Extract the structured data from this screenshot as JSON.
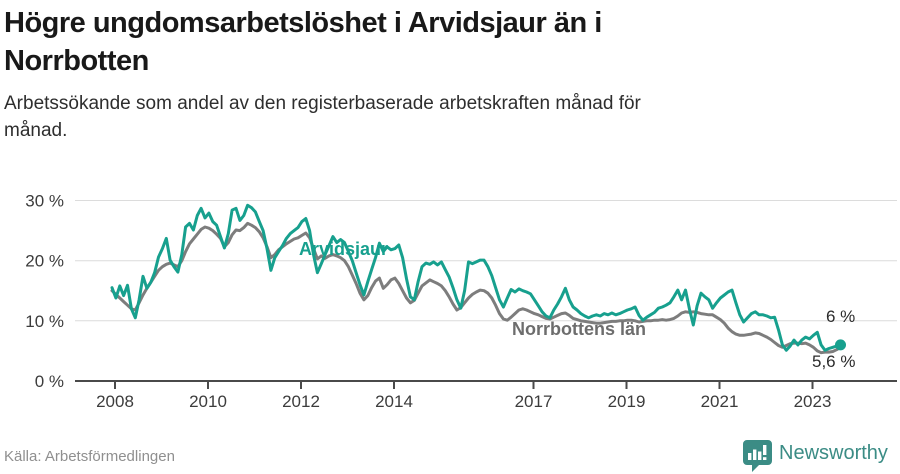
{
  "header": {
    "title_lines": [
      "Högre ungdomsarbetslöshet i Arvidsjaur än i",
      "Norrbotten"
    ],
    "subtitle_lines": [
      "Arbetssökande som andel av den registerbaserade arbetskraften månad för",
      "månad."
    ]
  },
  "colors": {
    "accent_teal": "#17a08e",
    "series_gray": "#7d7d7d",
    "grid": "#dcdcdc",
    "axis": "#4a4a4a",
    "axis_text": "#3c3c3c",
    "brand_teal": "#3b8c85"
  },
  "chart_data": {
    "type": "line",
    "title": "Högre ungdomsarbetslöshet i Arvidsjaur än i Norrbotten",
    "subtitle": "Arbetssökande som andel av den registerbaserade arbetskraften månad för månad.",
    "unit": "%",
    "frequency": "monthly",
    "start": "2008-01",
    "end": "2023-09",
    "grid": "horizontal",
    "legend_position": "inline-labels",
    "ylim": [
      0,
      32
    ],
    "y_axis": {
      "ticks": [
        {
          "value": 0,
          "label": "0 %"
        },
        {
          "value": 10,
          "label": "10 %"
        },
        {
          "value": 20,
          "label": "20 %"
        },
        {
          "value": 30,
          "label": "30 %"
        }
      ]
    },
    "x_axis": {
      "ticks": [
        {
          "year": 2008,
          "label": "2008"
        },
        {
          "year": 2010,
          "label": "2010"
        },
        {
          "year": 2012,
          "label": "2012"
        },
        {
          "year": 2014,
          "label": "2014"
        },
        {
          "year": 2017,
          "label": "2017"
        },
        {
          "year": 2019,
          "label": "2019"
        },
        {
          "year": 2021,
          "label": "2021"
        },
        {
          "year": 2023,
          "label": "2023"
        }
      ]
    },
    "series": [
      {
        "id": "arvidsjaur",
        "name": "Arvidsjaur",
        "color": "#17a08e",
        "end_label": "6 %",
        "end_value": 6.0,
        "values": [
          15.5,
          13.8,
          15.8,
          14.2,
          15.9,
          12.0,
          10.5,
          13.5,
          17.4,
          15.4,
          16.4,
          18.0,
          20.6,
          22.0,
          23.7,
          20.1,
          19.0,
          18.1,
          21.0,
          25.6,
          26.2,
          25.1,
          27.5,
          28.7,
          27.1,
          27.9,
          26.5,
          25.9,
          24.0,
          22.1,
          24.5,
          28.4,
          28.7,
          26.7,
          27.5,
          29.2,
          28.8,
          28.1,
          26.5,
          25.0,
          22.0,
          18.4,
          20.5,
          21.5,
          22.5,
          23.7,
          24.5,
          25.0,
          25.5,
          26.5,
          27.0,
          25.0,
          21.0,
          18.0,
          19.5,
          21.0,
          22.5,
          24.0,
          23.0,
          23.5,
          23.0,
          21.5,
          20.0,
          18.0,
          16.0,
          14.3,
          16.5,
          18.5,
          20.5,
          22.9,
          21.5,
          22.3,
          21.8,
          22.0,
          22.6,
          20.5,
          17.0,
          14.0,
          13.5,
          16.5,
          19.0,
          19.6,
          19.4,
          19.8,
          19.3,
          19.8,
          18.5,
          17.3,
          15.5,
          13.5,
          12.1,
          15.0,
          19.8,
          19.5,
          19.8,
          20.1,
          20.1,
          19.0,
          17.5,
          15.5,
          13.5,
          12.3,
          13.8,
          15.2,
          14.8,
          15.3,
          15.0,
          14.8,
          14.5,
          13.5,
          12.5,
          11.5,
          10.8,
          10.5,
          11.8,
          12.8,
          14.0,
          15.4,
          13.5,
          12.3,
          11.8,
          11.2,
          10.8,
          10.5,
          10.8,
          11.0,
          10.8,
          11.2,
          11.0,
          11.3,
          11.0,
          11.2,
          11.5,
          11.8,
          12.0,
          12.3,
          10.9,
          10.1,
          10.6,
          11.0,
          11.4,
          12.1,
          12.3,
          12.6,
          13.0,
          14.0,
          15.1,
          13.5,
          15.1,
          12.0,
          9.3,
          12.5,
          14.6,
          14.0,
          13.5,
          12.1,
          13.0,
          13.8,
          14.3,
          14.8,
          15.1,
          13.0,
          11.0,
          9.8,
          10.5,
          11.2,
          11.5,
          11.0,
          11.0,
          10.8,
          10.5,
          10.6,
          8.5,
          6.0,
          5.1,
          5.8,
          6.8,
          6.0,
          6.8,
          7.3,
          7.0,
          7.6,
          8.1,
          6.0,
          5.1,
          5.4,
          5.6,
          5.8,
          6.0
        ]
      },
      {
        "id": "norrbottens-lan",
        "name": "Norrbottens län",
        "color": "#7d7d7d",
        "end_label": "5,6 %",
        "end_value": 5.6,
        "values": [
          15.0,
          14.4,
          13.8,
          13.2,
          12.6,
          12.0,
          11.8,
          13.0,
          14.3,
          15.4,
          16.4,
          17.4,
          18.4,
          19.0,
          19.4,
          19.6,
          19.3,
          19.0,
          20.0,
          21.5,
          22.8,
          23.6,
          24.4,
          25.2,
          25.6,
          25.4,
          25.0,
          24.4,
          23.7,
          22.3,
          23.0,
          24.3,
          25.1,
          25.0,
          25.5,
          26.2,
          25.9,
          25.5,
          24.8,
          23.8,
          22.3,
          20.5,
          21.0,
          21.8,
          22.3,
          22.8,
          23.2,
          23.6,
          23.8,
          24.2,
          24.6,
          23.8,
          22.0,
          20.3,
          20.8,
          20.4,
          20.8,
          21.0,
          20.8,
          20.5,
          20.0,
          19.0,
          17.6,
          16.2,
          14.6,
          13.5,
          14.2,
          15.5,
          16.6,
          17.1,
          15.4,
          16.0,
          16.8,
          17.1,
          16.2,
          15.0,
          13.8,
          13.0,
          13.4,
          14.6,
          15.8,
          16.3,
          16.8,
          16.5,
          16.2,
          15.8,
          15.0,
          14.0,
          12.8,
          11.8,
          12.2,
          13.0,
          13.8,
          14.4,
          14.8,
          15.1,
          15.0,
          14.6,
          13.8,
          12.6,
          11.2,
          10.3,
          10.1,
          10.6,
          11.2,
          11.8,
          12.0,
          11.8,
          11.5,
          11.2,
          11.0,
          10.7,
          10.4,
          10.3,
          10.6,
          10.9,
          11.2,
          11.3,
          10.9,
          10.4,
          10.2,
          10.0,
          9.9,
          9.8,
          9.7,
          9.6,
          9.6,
          9.7,
          9.8,
          9.9,
          9.9,
          10.0,
          10.0,
          10.1,
          10.1,
          10.0,
          9.8,
          9.9,
          10.0,
          10.0,
          10.1,
          10.1,
          10.2,
          10.1,
          10.2,
          10.4,
          10.8,
          11.3,
          11.5,
          11.4,
          11.5,
          11.4,
          11.2,
          11.1,
          11.0,
          11.0,
          10.6,
          10.2,
          9.6,
          8.8,
          8.2,
          7.8,
          7.6,
          7.6,
          7.7,
          7.8,
          8.0,
          7.9,
          7.6,
          7.3,
          6.9,
          6.4,
          5.9,
          5.6,
          5.9,
          6.2,
          6.3,
          6.3,
          6.2,
          6.3,
          6.0,
          5.6,
          5.0,
          4.7,
          4.8,
          4.8,
          4.9,
          5.2,
          5.6
        ]
      }
    ]
  },
  "footer": {
    "source": "Källa: Arbetsförmedlingen",
    "brand": "Newsworthy"
  }
}
